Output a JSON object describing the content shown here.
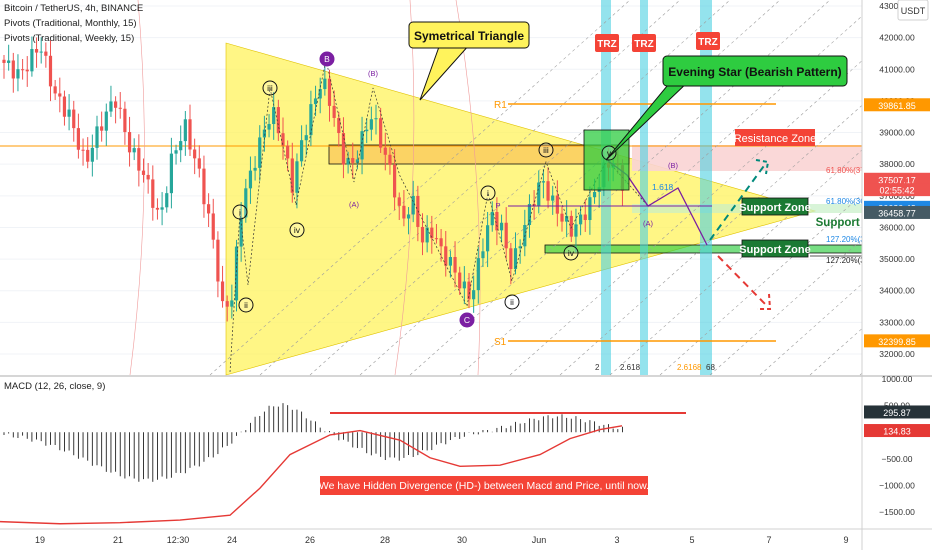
{
  "header": {
    "symbol_line": "Bitcoin / TetherUS, 4h, BINANCE",
    "pivots_monthly": "Pivots (Traditional, Monthly, 15)",
    "pivots_weekly": "Pivots (Traditional, Weekly, 15)",
    "currency": "USDT"
  },
  "macd_header": "MACD (12, 26, close, 9)",
  "annotations": {
    "triangle": "Symetrical Triangle",
    "evening_star": "Evening Star (Bearish Pattern)",
    "resistance_zone": "Resistance Zone",
    "support_zone_1": "Support Zone",
    "support_zone_2": "Support Zone",
    "support_zone_3": "Support Zone",
    "macd_note": "We have Hidden Divergence (HD-) between Macd and Price, until now.",
    "trz": "TRZ",
    "r1": "R1",
    "s1": "S1",
    "fib_61_8_a": "61.80%(37990.52)",
    "fib_61_8_b": "61.80%(36665.30)",
    "fib_127_a": "127.20%(35429.39)",
    "fib_127_b": "127.20%(35124.20)",
    "fib_1618": "1.618",
    "fib_2618": "2.618",
    "fib_2": "2",
    "fib_2618_b": "2.6168",
    "fib_68": "68"
  },
  "wave_labels": {
    "i1": "i",
    "ii1": "ii",
    "iii1": "iii",
    "iv1": "iv",
    "B_top": "B",
    "C_bottom": "C",
    "A_small": "(A)",
    "B_small": "(B)",
    "i2": "i",
    "ii2": "ii",
    "iii2": "iii",
    "iv2": "iv",
    "v2": "v",
    "A2": "(A)",
    "B2": "(B)",
    "p_mark": "P"
  },
  "colors": {
    "bull": "#26a69a",
    "bear": "#ef5350",
    "triangle": "#fff35c",
    "resistance": "#f7c6c6",
    "support": "#2ecc40",
    "pivot": "#ff9800",
    "trz": "#4dd0e1",
    "macd_signal": "#e53935",
    "wave": "#7b1fa2"
  },
  "chart_data": [
    {
      "type": "candlestick",
      "title": "Bitcoin / TetherUS, 4h, BINANCE",
      "ylim": [
        32000,
        43000
      ],
      "y_ticks": [
        32000,
        33000,
        34000,
        35000,
        36000,
        37000,
        38000,
        39000,
        40000,
        41000,
        42000,
        43000
      ],
      "x_ticks": [
        "19",
        "21",
        "12:30",
        "24",
        "26",
        "28",
        "30",
        "Jun",
        "3",
        "5",
        "7",
        "9"
      ],
      "price_labels": [
        {
          "text": "39861.85",
          "value": 39861.85,
          "color": "#ff9800"
        },
        {
          "text": "37507.17",
          "value": 37507.17,
          "color": "#ef5350"
        },
        {
          "text": "02:55:42",
          "value": 37180,
          "color": "#ef5350"
        },
        {
          "text": "36620.42",
          "value": 36620.42,
          "color": "#1e88e5"
        },
        {
          "text": "36458.77",
          "value": 36458.77,
          "color": "#455a64"
        },
        {
          "text": "32399.85",
          "value": 32399.85,
          "color": "#ff9800"
        }
      ],
      "pivot_levels": {
        "R1": 39861.85,
        "S1": 32399.85
      }
    },
    {
      "type": "bar",
      "title": "MACD (12, 26, close, 9)",
      "ylim": [
        -1800,
        1000
      ],
      "y_ticks": [
        1000,
        500,
        0,
        -500,
        -1000,
        -1500
      ],
      "y_tick_labels": [
        "1000.00",
        "500.00",
        "0.00",
        "−500.00",
        "−1000.00",
        "−1500.00"
      ],
      "value_labels": [
        {
          "text": "295.87",
          "value": 295.87,
          "color": "#263238"
        },
        {
          "text": "134.83",
          "value": 134.83,
          "color": "#e53935"
        }
      ]
    }
  ]
}
